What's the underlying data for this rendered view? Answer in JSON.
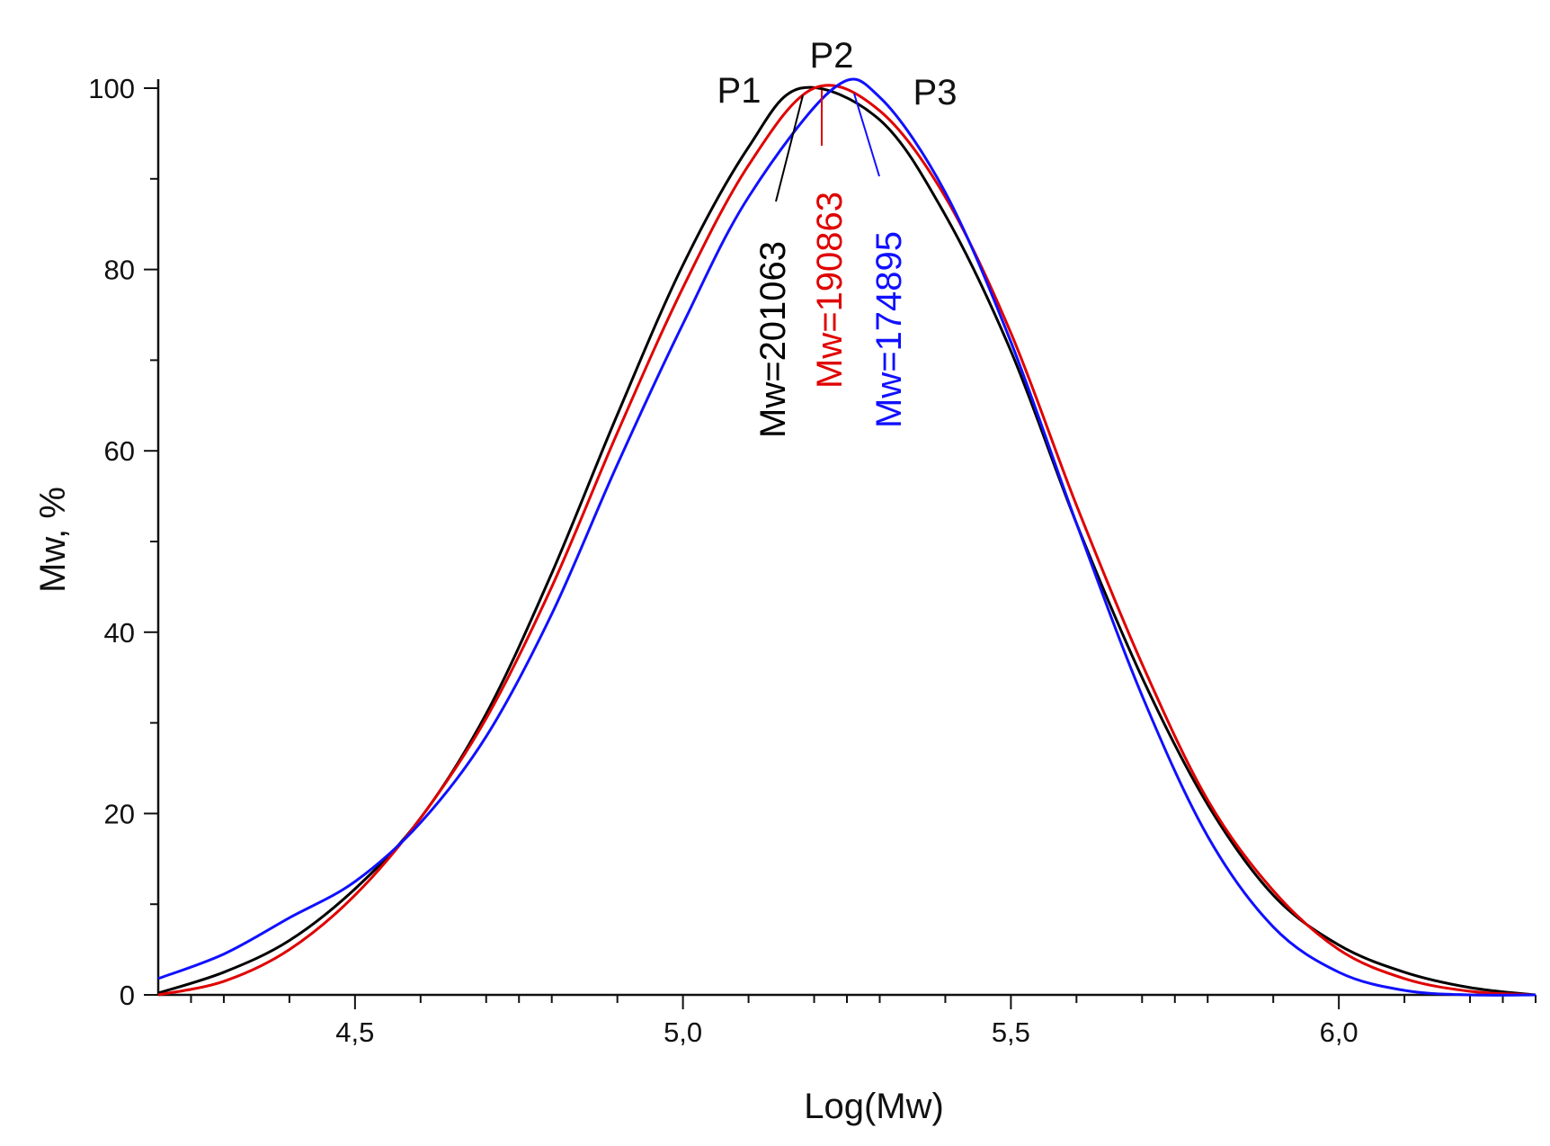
{
  "chart_data": {
    "type": "line",
    "title": "",
    "xlabel": "Log(Mw)",
    "ylabel": "Mw, %",
    "xlim": [
      4.2,
      6.3
    ],
    "ylim": [
      0,
      100
    ],
    "xticks": [
      4.5,
      5.0,
      5.5,
      6.0
    ],
    "xtick_labels": [
      "4,5",
      "5,0",
      "5,5",
      "6,0"
    ],
    "yticks": [
      0,
      20,
      40,
      60,
      80,
      100
    ],
    "ytick_labels": [
      "0",
      "20",
      "40",
      "60",
      "80",
      "100"
    ],
    "grid": false,
    "series": [
      {
        "name": "P1",
        "mw_label": "Mw=201063",
        "color": "#000000",
        "x": [
          4.2,
          4.3,
          4.4,
          4.5,
          4.6,
          4.7,
          4.8,
          4.9,
          5.0,
          5.1,
          5.18,
          5.3,
          5.4,
          5.5,
          5.6,
          5.7,
          5.8,
          5.9,
          6.0,
          6.1,
          6.2,
          6.3
        ],
        "y": [
          0.2,
          2.5,
          6.0,
          11.7,
          19.5,
          31.0,
          46.5,
          64.0,
          80.5,
          93.5,
          100,
          96.5,
          86.0,
          71.0,
          52.0,
          35.0,
          21.0,
          11.0,
          5.5,
          2.5,
          0.8,
          0
        ]
      },
      {
        "name": "P2",
        "mw_label": "Mw=190863",
        "color": "#e00000",
        "x": [
          4.2,
          4.3,
          4.4,
          4.5,
          4.6,
          4.7,
          4.8,
          4.9,
          5.0,
          5.1,
          5.2,
          5.3,
          5.4,
          5.5,
          5.6,
          5.7,
          5.8,
          5.9,
          6.0,
          6.1,
          6.2,
          6.3
        ],
        "y": [
          0,
          1.5,
          5.0,
          11.0,
          19.5,
          30.5,
          45.0,
          62.0,
          78.0,
          91.5,
          100,
          97.5,
          88.0,
          73.0,
          54.0,
          36.5,
          21.5,
          11.5,
          5.0,
          1.8,
          0.4,
          0
        ]
      },
      {
        "name": "P3",
        "mw_label": "Mw=174895",
        "color": "#1010ff",
        "x": [
          4.2,
          4.3,
          4.4,
          4.5,
          4.6,
          4.7,
          4.8,
          4.9,
          5.0,
          5.1,
          5.23,
          5.3,
          5.4,
          5.5,
          5.6,
          5.7,
          5.8,
          5.9,
          6.0,
          6.1,
          6.2,
          6.3
        ],
        "y": [
          1.8,
          4.5,
          8.5,
          12.5,
          19.0,
          28.5,
          42.0,
          58.5,
          74.0,
          88.0,
          100,
          99.0,
          88.5,
          72.0,
          52.0,
          33.0,
          17.5,
          7.5,
          2.5,
          0.5,
          0,
          0
        ]
      }
    ]
  }
}
